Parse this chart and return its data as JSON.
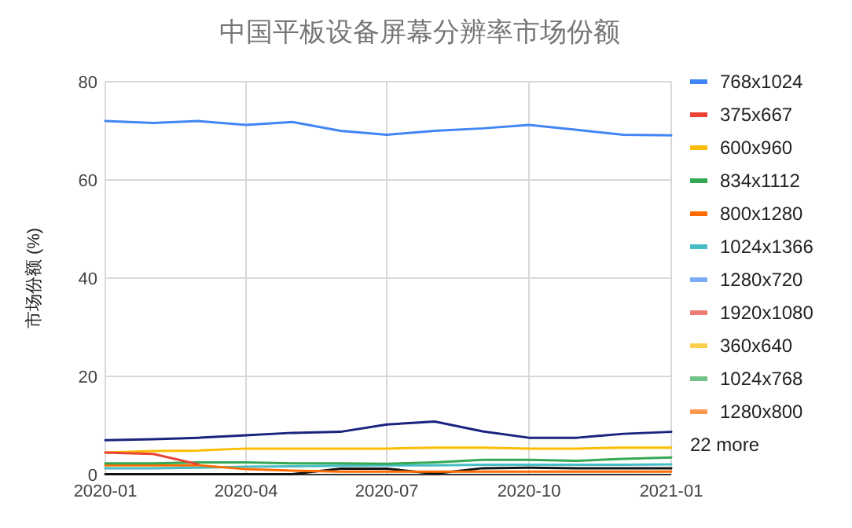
{
  "chart_data": {
    "type": "line",
    "title": "中国平板设备屏幕分辨率市场份额",
    "ylabel": "市场份额 (%)",
    "x": [
      "2020-01",
      "2020-02",
      "2020-03",
      "2020-04",
      "2020-05",
      "2020-06",
      "2020-07",
      "2020-08",
      "2020-09",
      "2020-10",
      "2020-11",
      "2020-12",
      "2021-01"
    ],
    "xlim": [
      "2020-01",
      "2021-01"
    ],
    "xticks": [
      {
        "value": "2020-01",
        "label": "2020-01"
      },
      {
        "value": "2020-04",
        "label": "2020-04"
      },
      {
        "value": "2020-07",
        "label": "2020-07"
      },
      {
        "value": "2020-10",
        "label": "2020-10"
      },
      {
        "value": "2021-01",
        "label": "2021-01"
      }
    ],
    "ylim": [
      0,
      80
    ],
    "yticks": [
      0,
      20,
      40,
      60,
      80
    ],
    "grid": true,
    "legend": "right",
    "marker": "none",
    "line_style": "solid",
    "series": [
      {
        "name": "768x1024",
        "color": "#4285f4",
        "values": [
          72,
          71.6,
          72,
          71.2,
          71.8,
          70,
          69.2,
          70,
          70.5,
          71.2,
          70.2,
          69.2,
          69.1
        ]
      },
      {
        "name": "375x667",
        "color": "#ea4335",
        "values": [
          4.5,
          4.2,
          2.1,
          null,
          null,
          null,
          null,
          null,
          null,
          null,
          null,
          null,
          null
        ]
      },
      {
        "name": "600x960",
        "color": "#fbbc04",
        "values": [
          4.5,
          4.8,
          4.9,
          5.3,
          5.3,
          5.3,
          5.3,
          5.5,
          5.5,
          5.3,
          5.3,
          5.5,
          5.5
        ]
      },
      {
        "name": "834x1112",
        "color": "#34a853",
        "values": [
          2.3,
          2.3,
          2.5,
          2.5,
          2.3,
          2.3,
          2.2,
          2.5,
          3,
          3,
          2.8,
          3.2,
          3.5
        ]
      },
      {
        "name": "800x1280",
        "color": "#ff6d01",
        "values": [
          1.9,
          1.9,
          1.9,
          1.1,
          0.8,
          0.6,
          0.6,
          0.6,
          0.6,
          0.6,
          0.6,
          0.6,
          0.6
        ]
      },
      {
        "name": "1024x1366",
        "color": "#46bdc6",
        "values": [
          1.3,
          1.3,
          1.4,
          1.6,
          1.7,
          1.8,
          1.9,
          1.9,
          2,
          2,
          2,
          2,
          2.1
        ]
      },
      {
        "name": "1280x720",
        "color": "#7baaf7",
        "values": [
          null,
          null,
          null,
          null,
          null,
          null,
          null,
          null,
          null,
          null,
          null,
          null,
          null
        ]
      },
      {
        "name": "1920x1080",
        "color": "#f07b72",
        "values": [
          null,
          null,
          null,
          null,
          null,
          null,
          null,
          null,
          null,
          null,
          null,
          null,
          null
        ]
      },
      {
        "name": "360x640",
        "color": "#fcd04f",
        "values": [
          null,
          null,
          null,
          null,
          null,
          null,
          null,
          null,
          null,
          null,
          null,
          null,
          null
        ]
      },
      {
        "name": "1024x768",
        "color": "#71c287",
        "values": [
          null,
          null,
          null,
          null,
          null,
          null,
          null,
          null,
          null,
          null,
          null,
          null,
          null
        ]
      },
      {
        "name": "1280x800",
        "color": "#ff994d",
        "values": [
          null,
          null,
          null,
          null,
          null,
          null,
          null,
          null,
          null,
          null,
          null,
          null,
          null
        ]
      },
      {
        "color": "#1a237e",
        "values": [
          7,
          7.2,
          7.5,
          8,
          8.5,
          8.7,
          10.2,
          10.8,
          8.8,
          7.5,
          7.5,
          8.3,
          8.7
        ]
      },
      {
        "color": "#111111",
        "values": [
          0.1,
          0.1,
          0.1,
          0.1,
          0.1,
          1.2,
          1.2,
          0.2,
          1.3,
          1.4,
          1.3,
          1.3,
          1.3
        ]
      }
    ],
    "annotations": [
      "22 more"
    ]
  }
}
